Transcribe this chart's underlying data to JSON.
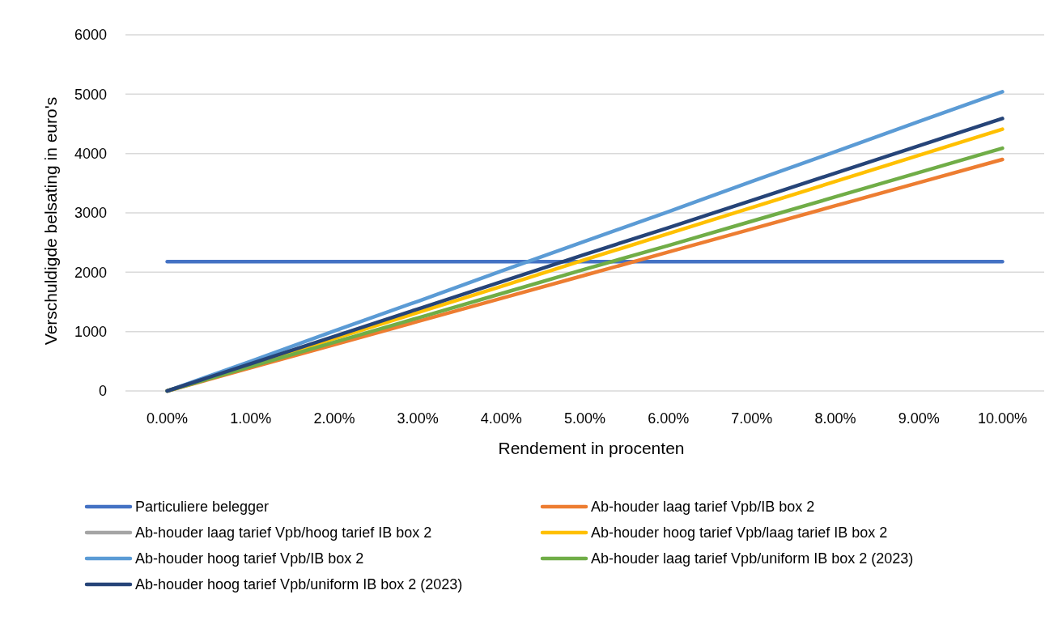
{
  "chart_data": {
    "type": "line",
    "xlabel": "Rendement in procenten",
    "ylabel": "Verschuldigde belsating in euro's",
    "categories": [
      "0.00%",
      "1.00%",
      "2.00%",
      "3.00%",
      "4.00%",
      "5.00%",
      "6.00%",
      "7.00%",
      "8.00%",
      "9.00%",
      "10.00%"
    ],
    "ylim": [
      0,
      6000
    ],
    "yticks": [
      0,
      1000,
      2000,
      3000,
      4000,
      5000,
      6000
    ],
    "grid": "y",
    "legend": "bottom",
    "marker": "none",
    "line_style": "solid",
    "series": [
      {
        "name": "Particuliere belegger",
        "color": "#4472c4",
        "values": [
          2180,
          2180,
          2180,
          2180,
          2180,
          2180,
          2180,
          2180,
          2180,
          2180,
          2180
        ]
      },
      {
        "name": "Ab-houder laag tarief Vpb/IB box 2",
        "color": "#ed7d31",
        "values": [
          0,
          390,
          780,
          1170,
          1560,
          1950,
          2340,
          2730,
          3120,
          3510,
          3900
        ]
      },
      {
        "name": "Ab-houder laag tarief Vpb/hoog tarief IB box 2",
        "color": "#a5a5a5",
        "values": [
          null,
          null,
          null,
          null,
          null,
          null,
          null,
          null,
          null,
          null,
          null
        ]
      },
      {
        "name": "Ab-houder hoog tarief Vpb/laag tarief IB box 2",
        "color": "#ffc000",
        "values": [
          0,
          440,
          880,
          1320,
          1760,
          2210,
          2650,
          3090,
          3530,
          3970,
          4410
        ]
      },
      {
        "name": "Ab-houder hoog tarief Vpb/IB box 2",
        "color": "#5b9bd5",
        "values": [
          0,
          500,
          1010,
          1510,
          2020,
          2520,
          3020,
          3530,
          4030,
          4540,
          5040
        ]
      },
      {
        "name": "Ab-houder laag tarief Vpb/uniform IB box 2 (2023)",
        "color": "#70ad47",
        "values": [
          0,
          410,
          820,
          1230,
          1640,
          2050,
          2450,
          2860,
          3270,
          3680,
          4090
        ]
      },
      {
        "name": "Ab-houder hoog tarief Vpb/uniform IB box 2 (2023)",
        "color": "#264478",
        "values": [
          0,
          460,
          920,
          1380,
          1840,
          2300,
          2750,
          3210,
          3670,
          4130,
          4590
        ]
      }
    ]
  }
}
